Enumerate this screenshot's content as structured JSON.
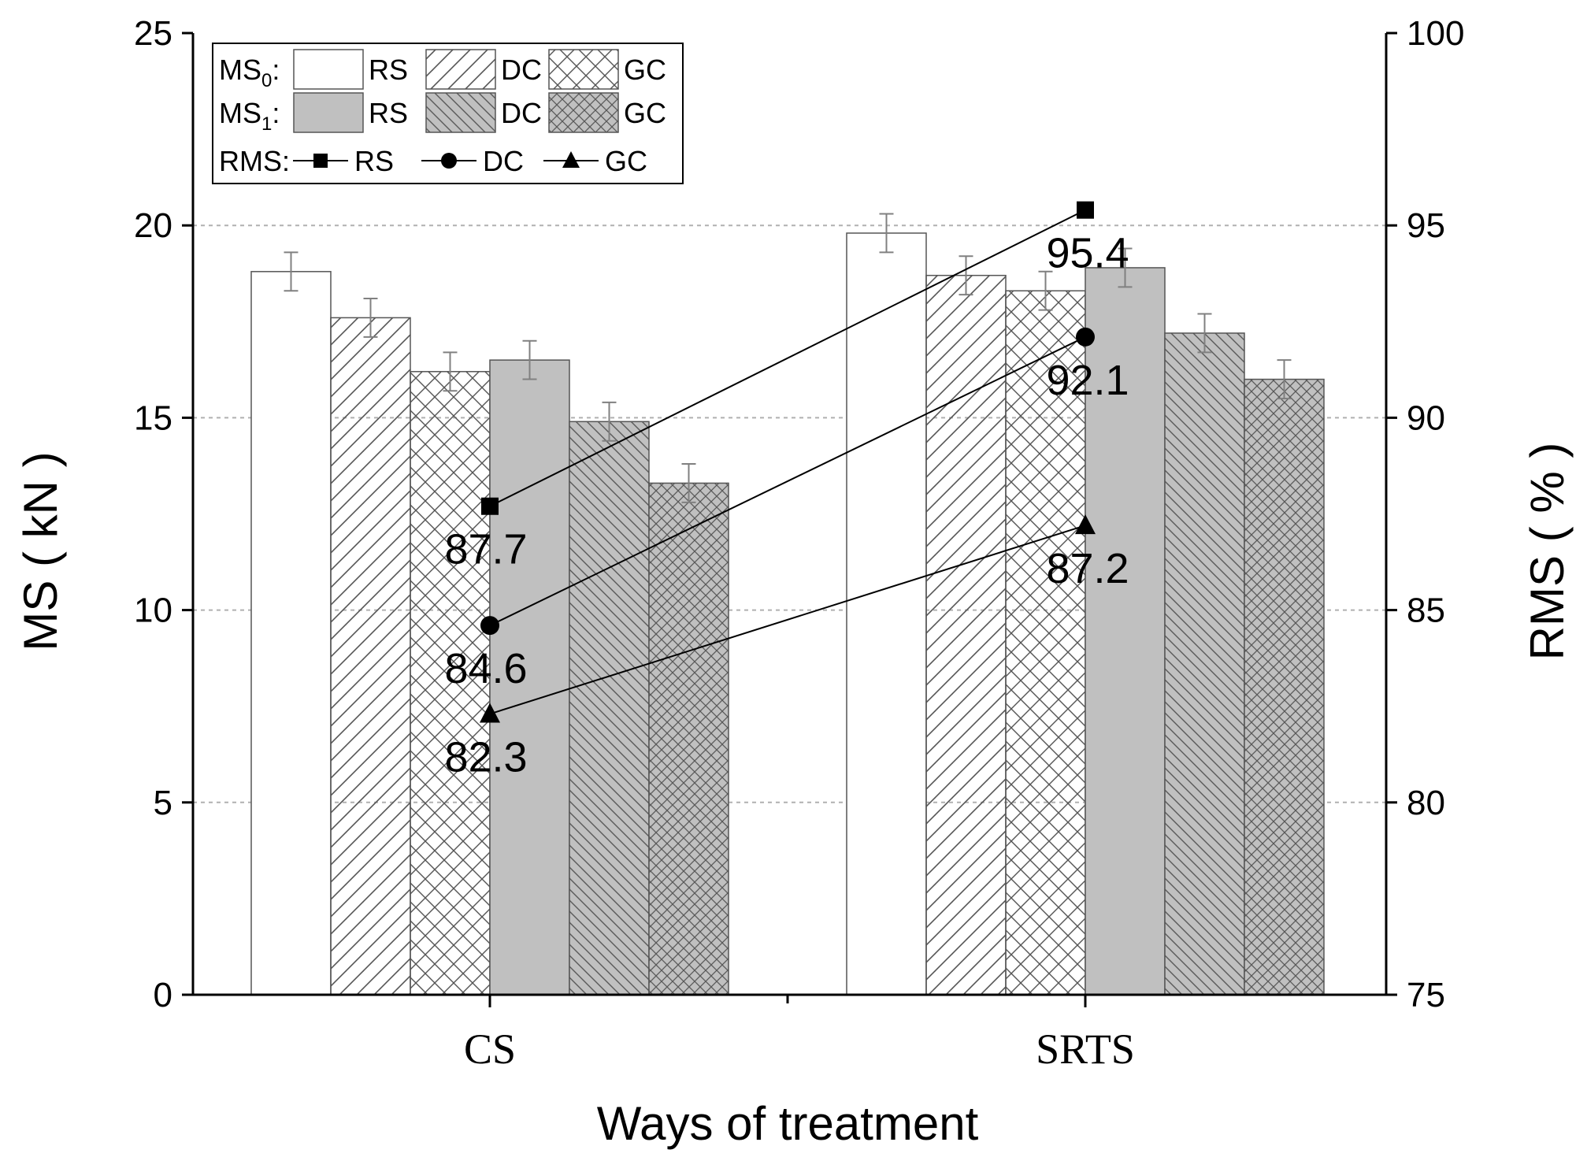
{
  "chart_data": {
    "type": "bar",
    "categories": [
      "CS",
      "SRTS"
    ],
    "xlabel": "Ways of treatment",
    "ylabel": "MS ( kN )",
    "y2label": "RMS ( % )",
    "ylim": [
      0,
      25
    ],
    "y2lim": [
      75,
      100
    ],
    "yticks": [
      0,
      5,
      10,
      15,
      20,
      25
    ],
    "y2ticks": [
      75,
      80,
      85,
      90,
      95,
      100
    ],
    "grid": "horizontal-dotted",
    "legend_position": "top-left",
    "series": [
      {
        "name": "MS0 RS",
        "group": "MS0",
        "material": "RS",
        "fill": "white",
        "values": [
          18.8,
          19.8
        ],
        "errors": [
          0.5,
          0.5
        ]
      },
      {
        "name": "MS0 DC",
        "group": "MS0",
        "material": "DC",
        "fill": "white-diagonal",
        "values": [
          17.6,
          18.7
        ],
        "errors": [
          0.5,
          0.5
        ]
      },
      {
        "name": "MS0 GC",
        "group": "MS0",
        "material": "GC",
        "fill": "white-crosshatch",
        "values": [
          16.2,
          18.3
        ],
        "errors": [
          0.5,
          0.5
        ]
      },
      {
        "name": "MS1 RS",
        "group": "MS1",
        "material": "RS",
        "fill": "gray",
        "values": [
          16.5,
          18.9
        ],
        "errors": [
          0.5,
          0.5
        ]
      },
      {
        "name": "MS1 DC",
        "group": "MS1",
        "material": "DC",
        "fill": "gray-backdiagonal",
        "values": [
          14.9,
          17.2
        ],
        "errors": [
          0.5,
          0.5
        ]
      },
      {
        "name": "MS1 GC",
        "group": "MS1",
        "material": "GC",
        "fill": "gray-crosshatch",
        "values": [
          13.3,
          16.0
        ],
        "errors": [
          0.5,
          0.5
        ]
      }
    ],
    "line_series": [
      {
        "name": "RMS RS",
        "marker": "square",
        "values": [
          87.7,
          95.4
        ],
        "labels": [
          "87.7",
          "95.4"
        ]
      },
      {
        "name": "RMS DC",
        "marker": "circle",
        "values": [
          84.6,
          92.1
        ],
        "labels": [
          "84.6",
          "92.1"
        ]
      },
      {
        "name": "RMS GC",
        "marker": "triangle",
        "values": [
          82.3,
          87.2
        ],
        "labels": [
          "82.3",
          "87.2"
        ]
      }
    ],
    "legend": {
      "rows": [
        {
          "prefix": "MS",
          "sub": "0",
          "suffix": ":",
          "items": [
            "RS",
            "DC",
            "GC"
          ]
        },
        {
          "prefix": "MS",
          "sub": "1",
          "suffix": ":",
          "items": [
            "RS",
            "DC",
            "GC"
          ]
        },
        {
          "prefix": "RMS",
          "sub": "",
          "suffix": ":",
          "items": [
            "RS",
            "DC",
            "GC"
          ]
        }
      ]
    },
    "colors": {
      "gray": "#c0c0c0",
      "axis": "#000000",
      "grid": "#b0b0b0",
      "error": "#808080"
    }
  }
}
